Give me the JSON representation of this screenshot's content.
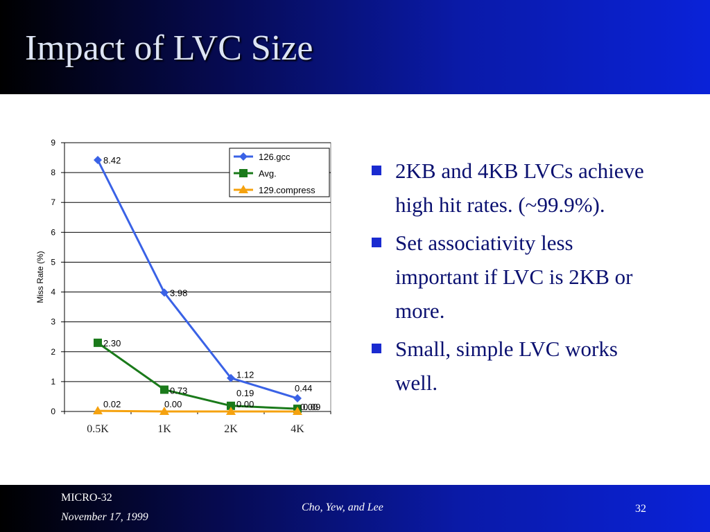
{
  "slide": {
    "title": "Impact of LVC Size"
  },
  "bullets": [
    "2KB and 4KB LVCs achieve high hit rates. (~99.9%).",
    "Set associativity less important if LVC is 2KB or more.",
    "Small, simple LVC works well."
  ],
  "footer": {
    "conference": "MICRO-32",
    "date": "November 17, 1999",
    "authors": "Cho, Yew, and Lee",
    "page_number": "32"
  },
  "colors": {
    "gcc": "#3a62e6",
    "avg": "#1a7a1a",
    "compress": "#f5a20f"
  },
  "chart_data": {
    "type": "line",
    "ylabel": "Miss Rate (%)",
    "xlabel": "",
    "ylim": [
      0,
      9
    ],
    "yticks": [
      0,
      1,
      2,
      3,
      4,
      5,
      6,
      7,
      8,
      9
    ],
    "grid": true,
    "legend": "top-right",
    "categories": [
      "0.5K",
      "1K",
      "2K",
      "4K"
    ],
    "series": [
      {
        "name": "126.gcc",
        "values": [
          8.42,
          3.98,
          1.12,
          0.44
        ],
        "labels": [
          "8.42",
          "3.98",
          "1.12",
          "0.44"
        ],
        "marker": "diamond",
        "color": "#3a62e6"
      },
      {
        "name": "Avg.",
        "values": [
          2.3,
          0.73,
          0.19,
          0.09
        ],
        "labels": [
          "2.30",
          "0.73",
          "0.19",
          "0.09"
        ],
        "marker": "square",
        "color": "#1a7a1a"
      },
      {
        "name": "129.compress",
        "values": [
          0.02,
          0.0,
          0.0,
          0.0
        ],
        "labels": [
          "0.02",
          "0.00",
          "0.00",
          "0.00"
        ],
        "marker": "triangle",
        "color": "#f5a20f"
      }
    ]
  }
}
